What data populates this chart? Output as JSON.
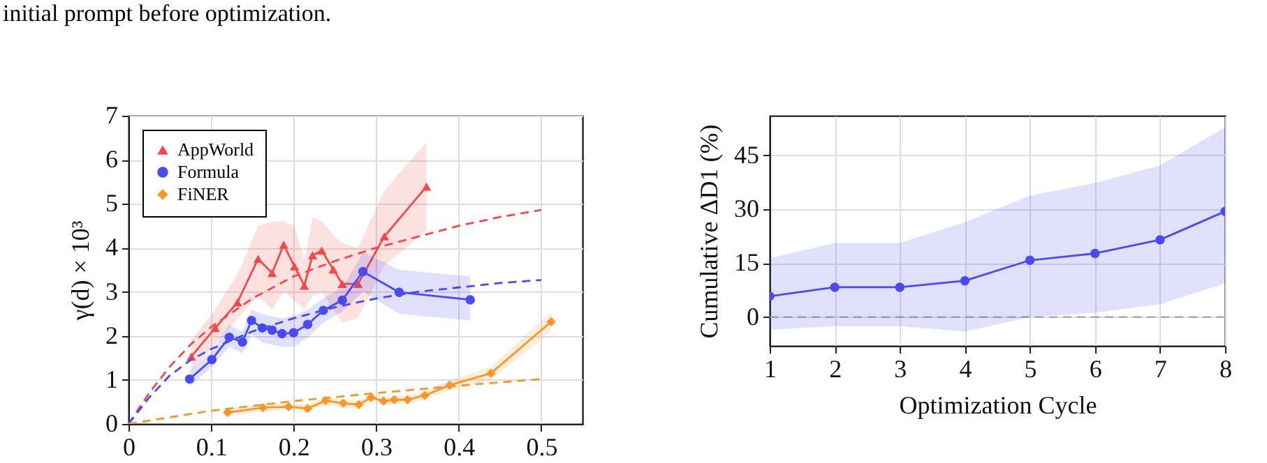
{
  "chart_data": [
    {
      "type": "line",
      "ylabel": "γ(d) × 10³",
      "xlim": [
        0,
        0.55
      ],
      "xticks": [
        {
          "value": 0,
          "label": "0"
        },
        0.1,
        0.2,
        0.3,
        0.4,
        0.5
      ],
      "ylim": [
        0,
        7
      ],
      "yticks": [
        0,
        1,
        2,
        3,
        4,
        5,
        6,
        7
      ],
      "grid": true,
      "legend": "top left",
      "annotations": [
        "initial prompt before optimization."
      ],
      "series": [
        {
          "name": "AppWorld",
          "color": "#f24a4a",
          "marker": "triangle",
          "x": [
            0.076,
            0.105,
            0.132,
            0.157,
            0.174,
            0.188,
            0.201,
            0.213,
            0.223,
            0.234,
            0.248,
            0.259,
            0.278,
            0.31,
            0.361
          ],
          "values": [
            1.53,
            2.18,
            2.76,
            3.75,
            3.43,
            4.07,
            3.58,
            3.14,
            3.83,
            3.94,
            3.51,
            3.18,
            3.18,
            4.26,
            5.39
          ],
          "lower": [
            1.2,
            1.8,
            2.4,
            2.9,
            2.6,
            3.0,
            2.8,
            2.6,
            2.9,
            3.0,
            2.6,
            2.3,
            2.4,
            3.6,
            4.4
          ],
          "upper": [
            1.9,
            2.6,
            3.4,
            4.5,
            4.6,
            4.6,
            4.5,
            3.7,
            4.7,
            4.6,
            4.3,
            4.1,
            4.0,
            5.3,
            6.4
          ]
        },
        {
          "name": "Formula",
          "color": "#4a4af2",
          "marker": "circle",
          "x": [
            0.074,
            0.101,
            0.122,
            0.138,
            0.149,
            0.162,
            0.174,
            0.186,
            0.2,
            0.217,
            0.236,
            0.259,
            0.284,
            0.328,
            0.414
          ],
          "values": [
            1.02,
            1.46,
            1.97,
            1.86,
            2.35,
            2.18,
            2.13,
            2.05,
            2.07,
            2.26,
            2.58,
            2.81,
            3.46,
            2.99,
            2.82
          ],
          "lower": [
            0.85,
            1.3,
            1.75,
            1.6,
            2.05,
            1.85,
            1.8,
            1.75,
            1.75,
            1.95,
            2.3,
            2.55,
            3.0,
            2.5,
            2.35
          ],
          "upper": [
            1.2,
            1.65,
            2.25,
            2.1,
            2.6,
            2.5,
            2.45,
            2.4,
            2.45,
            2.6,
            2.85,
            3.1,
            3.9,
            3.5,
            3.35
          ]
        },
        {
          "name": "FiNER",
          "color": "#f7962a",
          "marker": "diamond",
          "x": [
            0.12,
            0.163,
            0.194,
            0.217,
            0.239,
            0.26,
            0.279,
            0.294,
            0.309,
            0.322,
            0.338,
            0.359,
            0.389,
            0.439,
            0.512
          ],
          "values": [
            0.26,
            0.37,
            0.39,
            0.35,
            0.53,
            0.47,
            0.44,
            0.6,
            0.52,
            0.55,
            0.55,
            0.65,
            0.88,
            1.15,
            2.32
          ],
          "lower": [
            0.18,
            0.29,
            0.31,
            0.27,
            0.44,
            0.38,
            0.35,
            0.5,
            0.43,
            0.46,
            0.46,
            0.55,
            0.77,
            1.0,
            2.1
          ],
          "upper": [
            0.34,
            0.45,
            0.47,
            0.43,
            0.62,
            0.56,
            0.53,
            0.7,
            0.61,
            0.64,
            0.64,
            0.75,
            0.99,
            1.3,
            2.55
          ]
        },
        {
          "type": "line",
          "color": "#f24a4a",
          "line_style": "dashed",
          "marker": "none",
          "x": [
            0,
            0.025,
            0.05,
            0.075,
            0.1,
            0.15,
            0.2,
            0.25,
            0.3,
            0.35,
            0.4,
            0.45,
            0.5
          ],
          "values": [
            0,
            0.7,
            1.3,
            1.8,
            2.2,
            2.85,
            3.35,
            3.7,
            4.0,
            4.25,
            4.5,
            4.7,
            4.86
          ]
        },
        {
          "type": "line",
          "color": "#4a4af2",
          "line_style": "dashed",
          "marker": "none",
          "x": [
            0,
            0.025,
            0.05,
            0.075,
            0.1,
            0.15,
            0.2,
            0.25,
            0.3,
            0.35,
            0.4,
            0.45,
            0.5
          ],
          "values": [
            0,
            0.6,
            1.1,
            1.45,
            1.7,
            2.1,
            2.4,
            2.65,
            2.85,
            3.0,
            3.1,
            3.2,
            3.27
          ]
        },
        {
          "type": "line",
          "color": "#f7962a",
          "line_style": "dashed",
          "marker": "none",
          "x": [
            0,
            0.1,
            0.2,
            0.3,
            0.4,
            0.5
          ],
          "values": [
            0,
            0.3,
            0.52,
            0.7,
            0.87,
            1.02
          ]
        }
      ]
    },
    {
      "type": "line",
      "xlabel": "Optimization Cycle",
      "ylabel": "Cumulative ΔD1 (%)",
      "xlim": [
        1,
        8
      ],
      "xticks": [
        1,
        2,
        3,
        4,
        5,
        6,
        7,
        8
      ],
      "ylim": [
        -8,
        56
      ],
      "yticks": [
        0,
        15,
        30,
        45
      ],
      "grid": true,
      "marker": "circle",
      "x": [
        1,
        2,
        3,
        4,
        5,
        6,
        7,
        8
      ],
      "ref_lines": [
        {
          "axis": "y",
          "value": 0,
          "color": "#aaaaaa",
          "line_style": "dashed"
        }
      ],
      "series": [
        {
          "color": "#4a4af2",
          "values": [
            5.8,
            8.3,
            8.3,
            10.1,
            15.8,
            17.7,
            21.5,
            29.4
          ],
          "lower": [
            -3.5,
            -2.5,
            -2.5,
            -4,
            0,
            1.2,
            3.6,
            9.4
          ],
          "upper": [
            16.4,
            20.6,
            20.6,
            26.4,
            33.8,
            37.3,
            42.2,
            52.8
          ]
        }
      ]
    }
  ]
}
